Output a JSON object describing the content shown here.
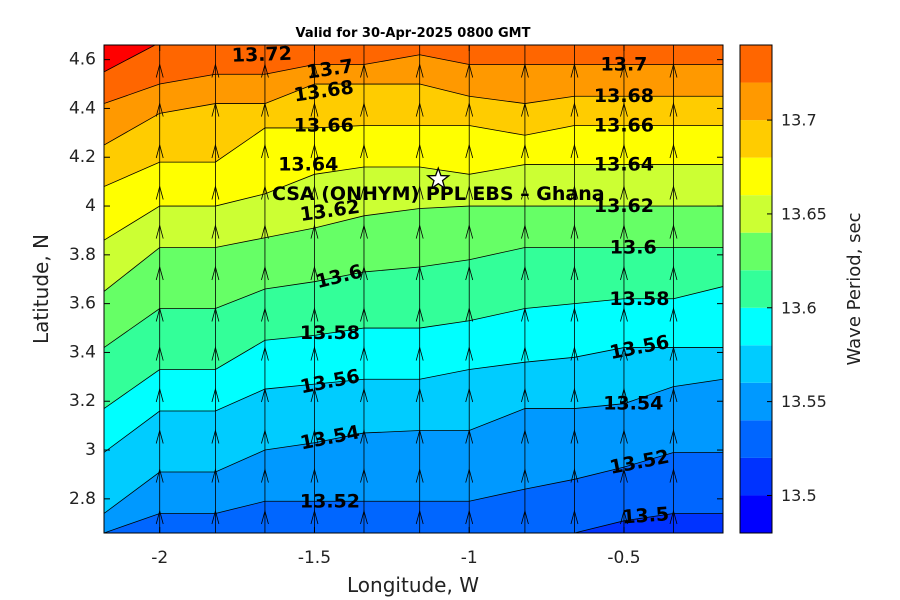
{
  "chart_data": {
    "type": "heatmap",
    "title": "Valid for 30-Apr-2025 0800 GMT",
    "xlabel": "Longitude, W",
    "ylabel": "Latitude, N",
    "colorbar_label": "Wave Period, sec",
    "xlim": [
      -2.18,
      -0.18
    ],
    "ylim": [
      2.66,
      4.66
    ],
    "x_ticks": [
      -2,
      -1.5,
      -1,
      -0.5
    ],
    "x_tick_labels": [
      "-2",
      "-1.5",
      "-1",
      "-0.5"
    ],
    "y_ticks": [
      2.8,
      3.0,
      3.2,
      3.4,
      3.6,
      3.8,
      4.0,
      4.2,
      4.4,
      4.6
    ],
    "y_tick_labels": [
      "2.8",
      "3",
      "3.2",
      "3.4",
      "3.6",
      "3.8",
      "4",
      "4.2",
      "4.4",
      "4.6"
    ],
    "colorbar_range": [
      13.48,
      13.74
    ],
    "colorbar_ticks": [
      13.5,
      13.55,
      13.6,
      13.65,
      13.7
    ],
    "colorbar_tick_labels": [
      "13.5",
      "13.55",
      "13.6",
      "13.65",
      "13.7"
    ],
    "levels": [
      13.48,
      13.5,
      13.52,
      13.54,
      13.56,
      13.58,
      13.6,
      13.62,
      13.64,
      13.66,
      13.68,
      13.7,
      13.72
    ],
    "level_colors": [
      "#0000ff",
      "#0033ff",
      "#0066ff",
      "#0099ff",
      "#00ccff",
      "#00ffff",
      "#33ff99",
      "#66ff66",
      "#ccff33",
      "#ffff00",
      "#ffcc00",
      "#ff9900",
      "#ff6600",
      "#ff0000"
    ],
    "grid_lon": [
      -2.18,
      -2.0,
      -1.82,
      -1.66,
      -1.5,
      -1.34,
      -1.16,
      -1.0,
      -0.82,
      -0.66,
      -0.5,
      -0.34,
      -0.18
    ],
    "contour_lines": [
      {
        "level": 13.5,
        "lat": [
          2.61,
          2.61,
          2.61,
          2.61,
          2.61,
          2.61,
          2.61,
          2.61,
          2.61,
          2.66,
          2.71,
          2.74,
          2.74
        ]
      },
      {
        "level": 13.52,
        "lat": [
          2.66,
          2.74,
          2.74,
          2.79,
          2.79,
          2.79,
          2.79,
          2.79,
          2.84,
          2.88,
          2.93,
          2.99,
          2.99
        ]
      },
      {
        "level": 13.54,
        "lat": [
          2.74,
          2.91,
          2.91,
          3.0,
          3.03,
          3.07,
          3.08,
          3.08,
          3.17,
          3.17,
          3.19,
          3.26,
          3.29
        ]
      },
      {
        "level": 13.56,
        "lat": [
          2.99,
          3.16,
          3.16,
          3.25,
          3.27,
          3.29,
          3.29,
          3.33,
          3.36,
          3.38,
          3.42,
          3.42,
          3.42
        ]
      },
      {
        "level": 13.58,
        "lat": [
          3.17,
          3.33,
          3.33,
          3.45,
          3.47,
          3.5,
          3.5,
          3.53,
          3.58,
          3.6,
          3.62,
          3.62,
          3.67
        ]
      },
      {
        "level": 13.6,
        "lat": [
          3.42,
          3.58,
          3.58,
          3.66,
          3.69,
          3.73,
          3.75,
          3.78,
          3.83,
          3.83,
          3.83,
          3.83,
          3.83
        ]
      },
      {
        "level": 13.62,
        "lat": [
          3.65,
          3.83,
          3.83,
          3.87,
          3.91,
          3.96,
          3.99,
          4.0,
          4.0,
          4.0,
          4.0,
          4.0,
          4.0
        ]
      },
      {
        "level": 13.64,
        "lat": [
          3.86,
          4.0,
          4.0,
          4.05,
          4.13,
          4.16,
          4.16,
          4.13,
          4.17,
          4.17,
          4.17,
          4.17,
          4.17
        ]
      },
      {
        "level": 13.66,
        "lat": [
          4.08,
          4.18,
          4.18,
          4.32,
          4.32,
          4.33,
          4.33,
          4.33,
          4.29,
          4.33,
          4.33,
          4.33,
          4.33
        ]
      },
      {
        "level": 13.68,
        "lat": [
          4.25,
          4.38,
          4.42,
          4.42,
          4.5,
          4.5,
          4.5,
          4.45,
          4.42,
          4.45,
          4.45,
          4.45,
          4.45
        ]
      },
      {
        "level": 13.7,
        "lat": [
          4.42,
          4.5,
          4.54,
          4.54,
          4.58,
          4.58,
          4.62,
          4.58,
          4.58,
          4.58,
          4.58,
          4.58,
          4.58
        ]
      },
      {
        "level": 13.72,
        "lat": [
          4.55,
          4.67,
          4.67,
          4.67,
          4.67,
          4.71,
          4.71,
          4.71,
          4.71,
          4.71,
          4.71,
          4.71,
          4.71
        ]
      }
    ],
    "contour_labels": [
      {
        "text": "13.72",
        "lon": -1.67,
        "lat": 4.62,
        "rot": -2
      },
      {
        "text": "13.7",
        "lon": -1.45,
        "lat": 4.56,
        "rot": -8
      },
      {
        "text": "13.68",
        "lon": -1.47,
        "lat": 4.47,
        "rot": -8
      },
      {
        "text": "13.66",
        "lon": -1.47,
        "lat": 4.33,
        "rot": 0
      },
      {
        "text": "13.64",
        "lon": -1.52,
        "lat": 4.17,
        "rot": 0
      },
      {
        "text": "13.62",
        "lon": -1.45,
        "lat": 3.98,
        "rot": -8
      },
      {
        "text": "13.6",
        "lon": -1.42,
        "lat": 3.71,
        "rot": -14
      },
      {
        "text": "13.58",
        "lon": -1.45,
        "lat": 3.48,
        "rot": 0
      },
      {
        "text": "13.56",
        "lon": -1.45,
        "lat": 3.28,
        "rot": -11
      },
      {
        "text": "13.54",
        "lon": -1.45,
        "lat": 3.05,
        "rot": -11
      },
      {
        "text": "13.52",
        "lon": -1.45,
        "lat": 2.79,
        "rot": 0
      },
      {
        "text": "13.7",
        "lon": -0.5,
        "lat": 4.58,
        "rot": 0
      },
      {
        "text": "13.68",
        "lon": -0.5,
        "lat": 4.45,
        "rot": 0
      },
      {
        "text": "13.66",
        "lon": -0.5,
        "lat": 4.33,
        "rot": 0
      },
      {
        "text": "13.64",
        "lon": -0.5,
        "lat": 4.17,
        "rot": 0
      },
      {
        "text": "13.62",
        "lon": -0.5,
        "lat": 4.0,
        "rot": 0
      },
      {
        "text": "13.6",
        "lon": -0.47,
        "lat": 3.83,
        "rot": 0
      },
      {
        "text": "13.58",
        "lon": -0.45,
        "lat": 3.62,
        "rot": 0
      },
      {
        "text": "13.56",
        "lon": -0.45,
        "lat": 3.42,
        "rot": -11
      },
      {
        "text": "13.54",
        "lon": -0.47,
        "lat": 3.19,
        "rot": 0
      },
      {
        "text": "13.52",
        "lon": -0.45,
        "lat": 2.95,
        "rot": -11
      },
      {
        "text": "13.5",
        "lon": -0.43,
        "lat": 2.73,
        "rot": -4
      }
    ],
    "arrow_lon": [
      -2.0,
      -1.82,
      -1.66,
      -1.5,
      -1.34,
      -1.16,
      -1.0,
      -0.82,
      -0.66,
      -0.5,
      -0.34
    ],
    "arrow_lat": [
      2.75,
      2.92,
      3.08,
      3.25,
      3.42,
      3.58,
      3.75,
      3.92,
      4.08,
      4.25,
      4.42,
      4.58
    ],
    "arrow_direction": "north",
    "site": {
      "label": "CSA (ONHYM) PPL EBS  – Ghana",
      "lon": -1.1,
      "lat": 4.11,
      "marker": "star-icon"
    }
  }
}
